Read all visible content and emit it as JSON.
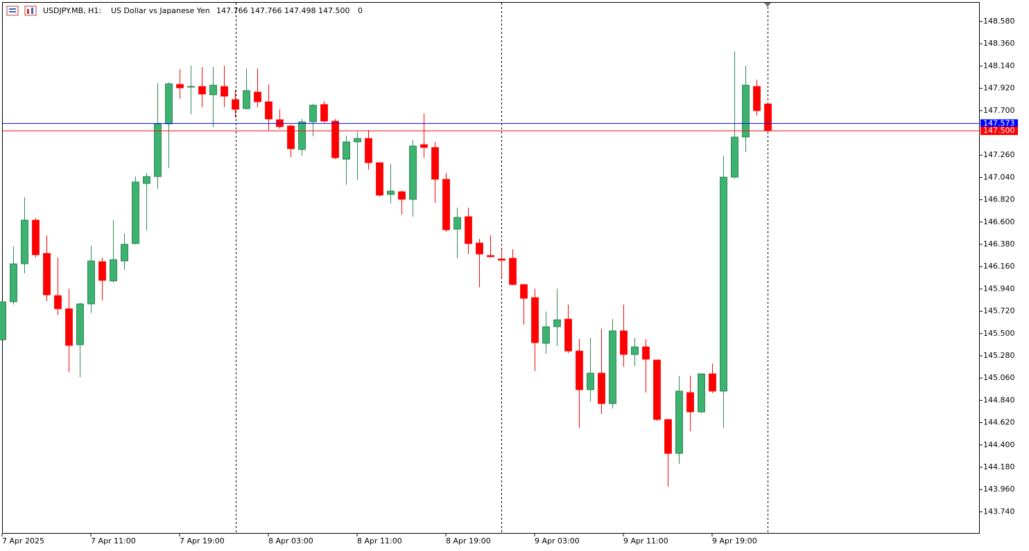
{
  "chart_data": {
    "type": "candlestick",
    "title": "USDJPY.MB, H1:",
    "subtitle": "US Dollar vs Japanese Yen",
    "header_values": "147.766 147.766 147.498 147.500",
    "header_tail": "0",
    "categories": [
      "7 Apr 2025",
      null,
      null,
      null,
      null,
      null,
      null,
      null,
      "7 Apr 11:00",
      null,
      null,
      null,
      null,
      null,
      null,
      null,
      "7 Apr 19:00",
      null,
      null,
      null,
      null,
      null,
      null,
      null,
      "8 Apr 03:00",
      null,
      null,
      null,
      null,
      null,
      null,
      null,
      "8 Apr 11:00",
      null,
      null,
      null,
      null,
      null,
      null,
      null,
      "8 Apr 19:00",
      null,
      null,
      null,
      null,
      null,
      null,
      null,
      "9 Apr 03:00",
      null,
      null,
      null,
      null,
      null,
      null,
      null,
      "9 Apr 11:00",
      null,
      null,
      null,
      null,
      null,
      null,
      null,
      "9 Apr 19:00",
      null,
      null,
      null,
      null,
      null
    ],
    "open": [
      145.437,
      145.813,
      146.188,
      146.619,
      146.291,
      145.874,
      145.744,
      145.389,
      145.792,
      146.209,
      146.018,
      146.216,
      146.387,
      146.981,
      147.049,
      147.569,
      147.958,
      147.938,
      147.938,
      147.856,
      147.938,
      147.808,
      147.719,
      147.883,
      147.787,
      147.61,
      147.548,
      147.316,
      147.589,
      147.76,
      147.596,
      147.22,
      147.391,
      147.425,
      147.186,
      146.872,
      146.899,
      146.824,
      147.364,
      147.336,
      147.022,
      146.53,
      146.653,
      146.393,
      146.27,
      146.236,
      146.243,
      145.983,
      145.854,
      145.403,
      145.567,
      145.642,
      145.327,
      144.945,
      145.109,
      144.808,
      145.526,
      145.293,
      145.368,
      145.239,
      144.651,
      144.316,
      144.917,
      144.726,
      145.102,
      144.931,
      147.043,
      147.439,
      147.938,
      147.766
    ],
    "high": [
      145.813,
      146.359,
      146.844,
      146.639,
      146.469,
      146.25,
      145.942,
      145.806,
      146.366,
      146.25,
      146.619,
      146.489,
      147.049,
      147.084,
      147.972,
      147.979,
      148.109,
      148.143,
      148.129,
      148.129,
      148.143,
      147.904,
      148.115,
      148.115,
      147.958,
      147.712,
      147.562,
      147.617,
      147.767,
      147.794,
      147.617,
      147.453,
      147.494,
      147.507,
      147.186,
      147.172,
      146.913,
      147.412,
      147.671,
      147.391,
      147.084,
      146.742,
      146.742,
      146.434,
      146.469,
      146.332,
      146.332,
      145.99,
      145.942,
      145.717,
      145.942,
      145.785,
      145.444,
      145.457,
      145.546,
      145.642,
      145.785,
      145.457,
      145.444,
      145.239,
      144.658,
      145.082,
      145.082,
      145.102,
      145.204,
      147.254,
      148.286,
      148.143,
      148.006,
      147.766
    ],
    "low": [
      145.437,
      145.785,
      146.093,
      146.25,
      145.819,
      145.683,
      145.116,
      145.068,
      145.703,
      145.826,
      146.004,
      146.127,
      146.38,
      146.516,
      146.926,
      147.131,
      147.815,
      147.664,
      147.733,
      147.535,
      147.733,
      147.63,
      147.712,
      147.733,
      147.507,
      147.521,
      147.241,
      147.254,
      147.446,
      147.582,
      147.22,
      146.967,
      147.015,
      147.118,
      146.851,
      146.783,
      146.674,
      146.653,
      147.234,
      146.79,
      146.503,
      146.243,
      146.284,
      145.956,
      146.25,
      146.059,
      145.977,
      145.587,
      145.129,
      145.3,
      145.375,
      145.307,
      144.569,
      144.829,
      144.706,
      144.76,
      145.17,
      145.177,
      144.917,
      144.637,
      143.988,
      144.214,
      144.535,
      144.713,
      144.911,
      144.569,
      147.029,
      147.289,
      147.651,
      147.498
    ],
    "close": [
      145.813,
      146.188,
      146.619,
      146.277,
      145.881,
      145.744,
      145.382,
      145.792,
      146.216,
      146.024,
      146.229,
      146.38,
      146.995,
      147.049,
      147.569,
      147.965,
      147.924,
      147.938,
      147.863,
      147.951,
      147.842,
      147.712,
      147.897,
      147.787,
      147.617,
      147.541,
      147.323,
      147.589,
      147.753,
      147.596,
      147.234,
      147.391,
      147.425,
      147.186,
      146.865,
      146.906,
      146.824,
      147.35,
      147.336,
      147.022,
      146.523,
      146.646,
      146.387,
      146.284,
      146.257,
      146.223,
      145.983,
      145.847,
      145.409,
      145.567,
      145.635,
      145.327,
      144.945,
      145.109,
      144.808,
      145.526,
      145.293,
      145.368,
      145.246,
      144.651,
      144.316,
      144.931,
      144.726,
      145.102,
      144.931,
      147.043,
      147.439,
      147.951,
      147.699,
      147.5
    ],
    "up_color": "#3cb371",
    "down_color": "#ff0000",
    "ylim": [
      143.524,
      148.771
    ],
    "yticks": [
      {
        "value": 148.58,
        "label": "148.580"
      },
      {
        "value": 148.36,
        "label": "148.360"
      },
      {
        "value": 148.14,
        "label": "148.140"
      },
      {
        "value": 147.92,
        "label": "147.920"
      },
      {
        "value": 147.7,
        "label": "147.700"
      },
      {
        "value": 147.26,
        "label": "147.260"
      },
      {
        "value": 147.04,
        "label": "147.040"
      },
      {
        "value": 146.82,
        "label": "146.820"
      },
      {
        "value": 146.6,
        "label": "146.600"
      },
      {
        "value": 146.38,
        "label": "146.380"
      },
      {
        "value": 146.16,
        "label": "146.160"
      },
      {
        "value": 145.94,
        "label": "145.940"
      },
      {
        "value": 145.72,
        "label": "145.720"
      },
      {
        "value": 145.5,
        "label": "145.500"
      },
      {
        "value": 145.28,
        "label": "145.280"
      },
      {
        "value": 145.06,
        "label": "145.060"
      },
      {
        "value": 144.84,
        "label": "144.840"
      },
      {
        "value": 144.62,
        "label": "144.620"
      },
      {
        "value": 144.4,
        "label": "144.400"
      },
      {
        "value": 144.18,
        "label": "144.180"
      },
      {
        "value": 143.96,
        "label": "143.960"
      },
      {
        "value": 143.74,
        "label": "143.740"
      }
    ],
    "price_lines": [
      {
        "value": 147.573,
        "label": "147.573",
        "color": "#0000ff"
      },
      {
        "value": 147.5,
        "label": "147.500",
        "color": "#ff0000"
      }
    ]
  }
}
